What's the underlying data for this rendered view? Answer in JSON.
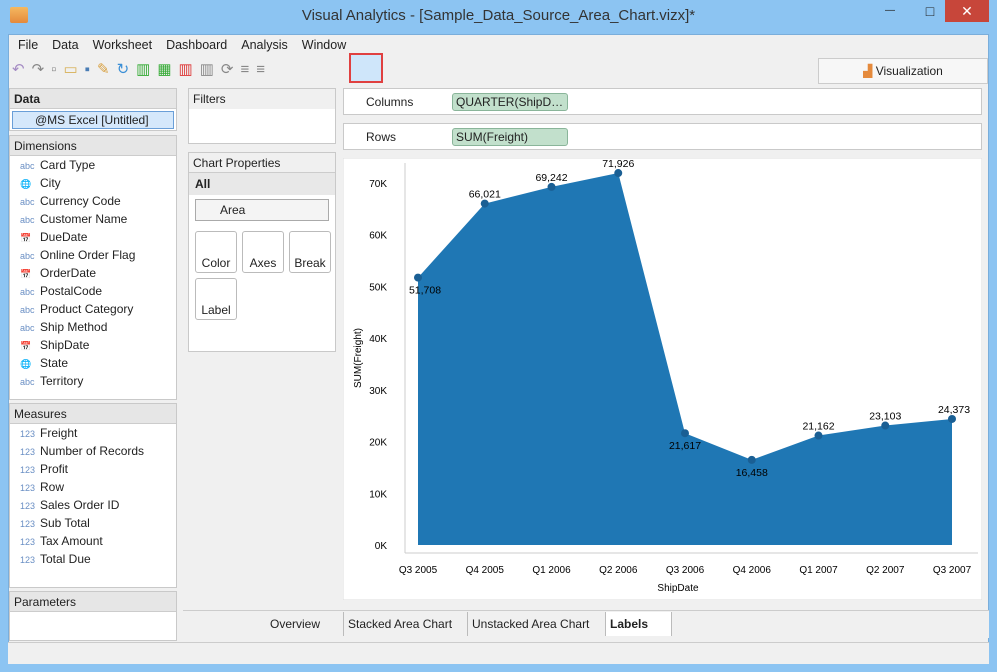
{
  "window": {
    "title": "Visual Analytics - [Sample_Data_Source_Area_Chart.vizx]*",
    "minimize": "—",
    "maximize": "□",
    "close": "✕"
  },
  "menu": [
    "File",
    "Data",
    "Worksheet",
    "Dashboard",
    "Analysis",
    "Window"
  ],
  "visualization_tab": "Visualization",
  "data_panel": {
    "title": "Data",
    "source": "@MS Excel [Untitled]"
  },
  "dimensions": {
    "title": "Dimensions",
    "items": [
      {
        "type": "abc",
        "label": "Card Type"
      },
      {
        "type": "geo",
        "label": "City"
      },
      {
        "type": "abc",
        "label": "Currency Code"
      },
      {
        "type": "abc",
        "label": "Customer Name"
      },
      {
        "type": "date",
        "label": "DueDate"
      },
      {
        "type": "abc",
        "label": "Online Order Flag"
      },
      {
        "type": "date",
        "label": "OrderDate"
      },
      {
        "type": "abc",
        "label": "PostalCode"
      },
      {
        "type": "abc",
        "label": "Product Category"
      },
      {
        "type": "abc",
        "label": "Ship Method"
      },
      {
        "type": "date",
        "label": "ShipDate"
      },
      {
        "type": "geo",
        "label": "State"
      },
      {
        "type": "abc",
        "label": "Territory"
      }
    ]
  },
  "measures": {
    "title": "Measures",
    "items": [
      {
        "type": "123",
        "label": "Freight"
      },
      {
        "type": "123",
        "label": "Number of Records"
      },
      {
        "type": "123",
        "label": "Profit"
      },
      {
        "type": "123",
        "label": "Row"
      },
      {
        "type": "123",
        "label": "Sales Order ID"
      },
      {
        "type": "123",
        "label": "Sub Total"
      },
      {
        "type": "123",
        "label": "Tax Amount"
      },
      {
        "type": "123",
        "label": "Total Due"
      }
    ]
  },
  "parameters": {
    "title": "Parameters"
  },
  "filters": {
    "title": "Filters"
  },
  "chart_properties": {
    "title": "Chart Properties",
    "all": "All",
    "chart_type": "Area",
    "buttons": [
      "Color",
      "Axes",
      "Break",
      "Label"
    ]
  },
  "shelves": {
    "columns_label": "Columns",
    "columns_pill": "QUARTER(ShipD…",
    "rows_label": "Rows",
    "rows_pill": "SUM(Freight)"
  },
  "sheet_tabs": [
    {
      "label": "Overview",
      "active": false
    },
    {
      "label": "Stacked Area Chart",
      "active": false
    },
    {
      "label": "Unstacked Area Chart",
      "active": false
    },
    {
      "label": "Labels",
      "active": true
    }
  ],
  "chart_data": {
    "type": "area",
    "xlabel": "ShipDate",
    "ylabel": "SUM(Freight)",
    "categories": [
      "Q3 2005",
      "Q4 2005",
      "Q1 2006",
      "Q2 2006",
      "Q3 2006",
      "Q4 2006",
      "Q1 2007",
      "Q2 2007",
      "Q3 2007"
    ],
    "values": [
      51708,
      66021,
      69242,
      71926,
      21617,
      16458,
      21162,
      23103,
      24373
    ],
    "labels": [
      "51,708",
      "66,021",
      "69,242",
      "71,926",
      "21,617",
      "16,458",
      "21,162",
      "23,103",
      "24,373"
    ],
    "yticks": [
      "0K",
      "10K",
      "20K",
      "30K",
      "40K",
      "50K",
      "60K",
      "70K"
    ],
    "ylim": [
      0,
      70000
    ],
    "color": "#1f77b4",
    "grid": false
  }
}
